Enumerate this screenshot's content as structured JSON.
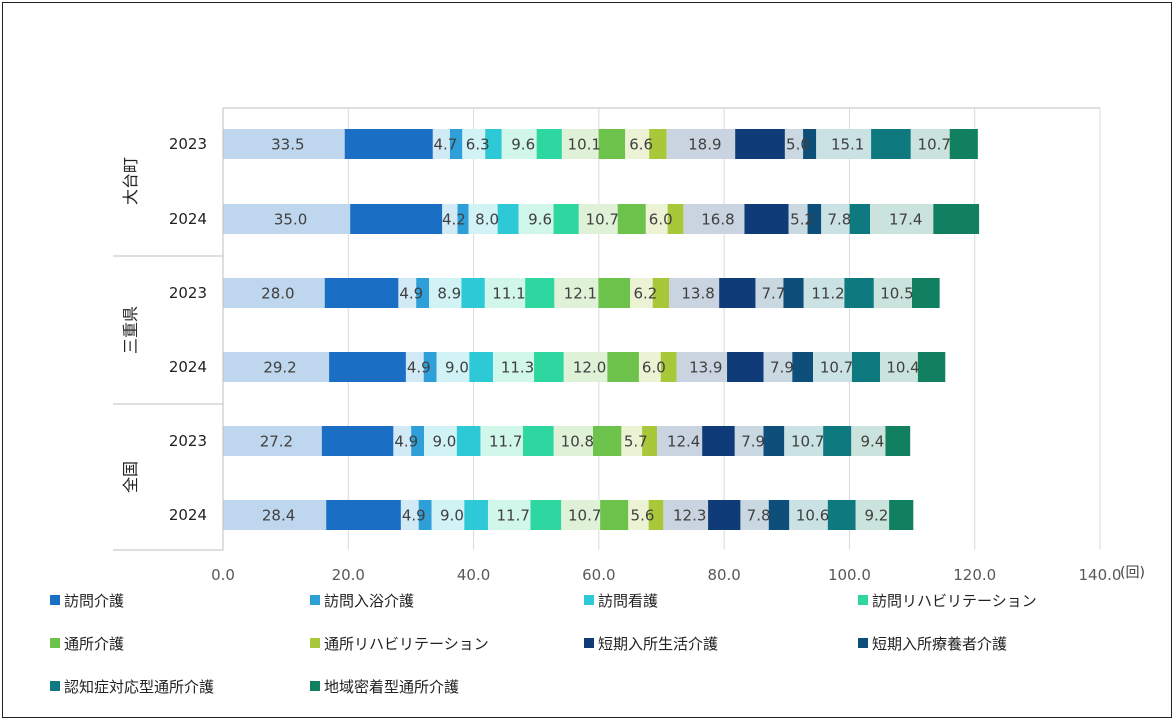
{
  "chart_data": {
    "type": "bar",
    "orientation": "horizontal",
    "stacked": true,
    "x_unit": "(回)",
    "xlim": [
      0,
      140
    ],
    "x_ticks": [
      "0.0",
      "20.0",
      "40.0",
      "60.0",
      "80.0",
      "100.0",
      "120.0",
      "140.0"
    ],
    "groups": [
      {
        "label": "大台町",
        "rows": [
          "2023",
          "2024"
        ]
      },
      {
        "label": "三重県",
        "rows": [
          "2023",
          "2024"
        ]
      },
      {
        "label": "全国",
        "rows": [
          "2023",
          "2024"
        ]
      }
    ],
    "series": [
      {
        "name": "訪問介護",
        "color": "#1a6fc4",
        "values": [
          33.5,
          35.0,
          28.0,
          29.2,
          27.2,
          28.4
        ]
      },
      {
        "name": "訪問入浴介護",
        "color": "#2e9fd8",
        "values": [
          4.7,
          4.2,
          4.9,
          4.9,
          4.9,
          4.9
        ]
      },
      {
        "name": "訪問看護",
        "color": "#2ec9d6",
        "values": [
          6.3,
          8.0,
          8.9,
          9.0,
          9.0,
          9.0
        ]
      },
      {
        "name": "訪問リハビリテーション",
        "color": "#2ed6a0",
        "values": [
          9.6,
          9.6,
          11.1,
          11.3,
          11.7,
          11.7
        ]
      },
      {
        "name": "通所介護",
        "color": "#6cc24a",
        "values": [
          10.1,
          10.7,
          12.1,
          12.0,
          10.8,
          10.7
        ]
      },
      {
        "name": "通所リハビリテーション",
        "color": "#a8c83a",
        "values": [
          6.6,
          6.0,
          6.2,
          6.0,
          5.7,
          5.6
        ]
      },
      {
        "name": "短期入所生活介護",
        "color": "#0f3c78",
        "values": [
          18.9,
          16.8,
          13.8,
          13.9,
          12.4,
          12.3
        ]
      },
      {
        "name": "短期入所療養者介護",
        "color": "#0d4f7a",
        "values": [
          5.0,
          5.2,
          7.7,
          7.9,
          7.9,
          7.8
        ]
      },
      {
        "name": "認知症対応型通所介護",
        "color": "#0e7a80",
        "values": [
          15.1,
          7.8,
          11.2,
          10.7,
          10.7,
          10.6
        ]
      },
      {
        "name": "地域密着型通所介護",
        "color": "#108060",
        "values": [
          10.7,
          17.4,
          10.5,
          10.4,
          9.4,
          9.2
        ]
      }
    ],
    "legend_position": "bottom",
    "grid": true
  }
}
